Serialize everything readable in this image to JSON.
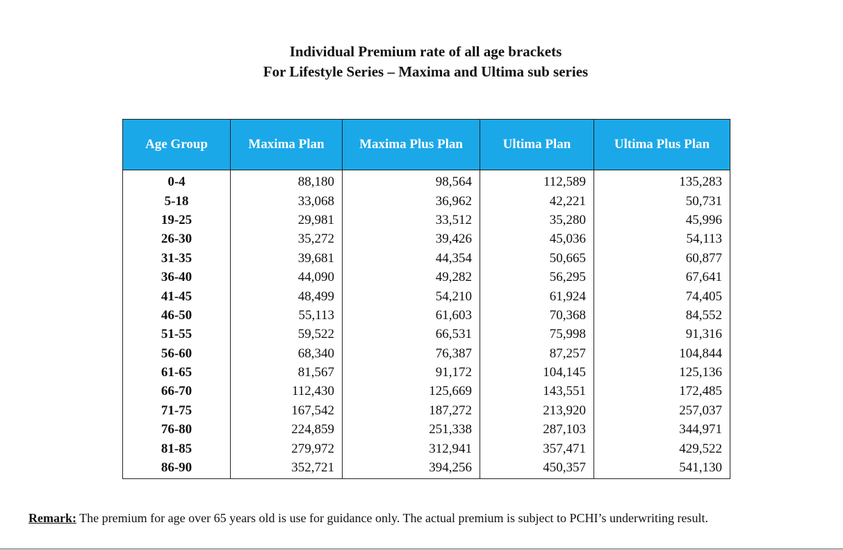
{
  "title": {
    "line1": "Individual Premium rate of all age brackets",
    "line2": "For Lifestyle Series – Maxima and Ultima sub series"
  },
  "table": {
    "headers": [
      "Age Group",
      "Maxima Plan",
      "Maxima Plus Plan",
      "Ultima Plan",
      "Ultima Plus Plan"
    ],
    "rows": [
      [
        "0-4",
        "88,180",
        "98,564",
        "112,589",
        "135,283"
      ],
      [
        "5-18",
        "33,068",
        "36,962",
        "42,221",
        "50,731"
      ],
      [
        "19-25",
        "29,981",
        "33,512",
        "35,280",
        "45,996"
      ],
      [
        "26-30",
        "35,272",
        "39,426",
        "45,036",
        "54,113"
      ],
      [
        "31-35",
        "39,681",
        "44,354",
        "50,665",
        "60,877"
      ],
      [
        "36-40",
        "44,090",
        "49,282",
        "56,295",
        "67,641"
      ],
      [
        "41-45",
        "48,499",
        "54,210",
        "61,924",
        "74,405"
      ],
      [
        "46-50",
        "55,113",
        "61,603",
        "70,368",
        "84,552"
      ],
      [
        "51-55",
        "59,522",
        "66,531",
        "75,998",
        "91,316"
      ],
      [
        "56-60",
        "68,340",
        "76,387",
        "87,257",
        "104,844"
      ],
      [
        "61-65",
        "81,567",
        "91,172",
        "104,145",
        "125,136"
      ],
      [
        "66-70",
        "112,430",
        "125,669",
        "143,551",
        "172,485"
      ],
      [
        "71-75",
        "167,542",
        "187,272",
        "213,920",
        "257,037"
      ],
      [
        "76-80",
        "224,859",
        "251,338",
        "287,103",
        "344,971"
      ],
      [
        "81-85",
        "279,972",
        "312,941",
        "357,471",
        "429,522"
      ],
      [
        "86-90",
        "352,721",
        "394,256",
        "450,357",
        "541,130"
      ]
    ]
  },
  "remark": {
    "label": "Remark:",
    "text": " The premium for age over 65 years old is use for guidance only. The actual premium is subject to PCHI’s underwriting result."
  },
  "colors": {
    "header_bg": "#1ba8e8",
    "header_text": "#ffffff"
  }
}
